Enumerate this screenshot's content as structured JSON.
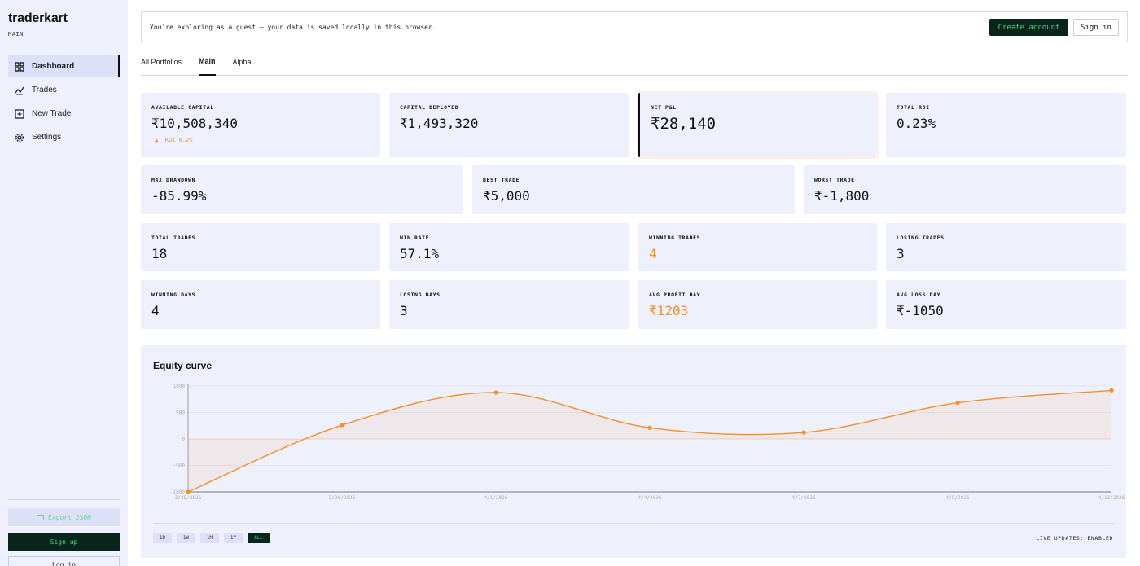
{
  "brand": {
    "name": "traderkart",
    "subtitle": "MAIN"
  },
  "sidebar": {
    "items": [
      {
        "label": "Dashboard",
        "icon": "grid-icon",
        "active": true
      },
      {
        "label": "Trades",
        "icon": "trend-icon",
        "active": false
      },
      {
        "label": "New Trade",
        "icon": "plus-square-icon",
        "active": false
      },
      {
        "label": "Settings",
        "icon": "gear-icon",
        "active": false
      }
    ],
    "export_label": "Export JSON",
    "signup_label": "Sign up",
    "login_label": "Log in"
  },
  "banner": {
    "text": "You're exploring as a guest — your data is saved locally in this browser.",
    "create_label": "Create account",
    "signin_label": "Sign in"
  },
  "tabs": [
    {
      "label": "All Portfolios",
      "active": false
    },
    {
      "label": "Main",
      "active": true
    },
    {
      "label": "Alpha",
      "active": false
    }
  ],
  "stats": {
    "available_capital": {
      "label": "AVAILABLE CAPITAL",
      "value": "₹10,508,340",
      "sub": "ROI 0.2%"
    },
    "capital_deployed": {
      "label": "CAPITAL DEPLOYED",
      "value": "₹1,493,320"
    },
    "net_pnl": {
      "label": "NET P&L",
      "value": "₹28,140"
    },
    "total_roi": {
      "label": "TOTAL ROI",
      "value": "0.23%"
    },
    "max_drawdown": {
      "label": "MAX DRAWDOWN",
      "value": "-85.99%"
    },
    "best_trade": {
      "label": "BEST TRADE",
      "value": "₹5,000"
    },
    "worst_trade": {
      "label": "WORST TRADE",
      "value": "₹-1,800"
    },
    "total_trades": {
      "label": "TOTAL TRADES",
      "value": "18"
    },
    "win_rate": {
      "label": "WIN RATE",
      "value": "57.1%"
    },
    "winning_trades": {
      "label": "WINNING TRADES",
      "value": "4"
    },
    "losing_trades": {
      "label": "LOSING TRADES",
      "value": "3"
    },
    "winning_days": {
      "label": "WINNING DAYS",
      "value": "4"
    },
    "losing_days": {
      "label": "LOSING DAYS",
      "value": "3"
    },
    "avg_profit_day": {
      "label": "AVG PROFIT DAY",
      "value": "₹1203"
    },
    "avg_loss_day": {
      "label": "AVG LOSS DAY",
      "value": "₹-1050"
    }
  },
  "colors": {
    "accent": "#f2902a",
    "dark": "#07251a",
    "green": "#3ddc84",
    "panel": "#eef0fb"
  },
  "equity": {
    "title": "Equity curve",
    "ranges": [
      "1D",
      "1W",
      "1M",
      "1Y",
      "ALL"
    ],
    "active_range": "ALL",
    "live_label": "LIVE UPDATES: ENABLED"
  },
  "chart_data": {
    "type": "line",
    "title": "Equity curve",
    "x": [
      "3/25/2026",
      "3/26/2026",
      "4/1/2026",
      "4/4/2026",
      "4/7/2026",
      "4/9/2026",
      "4/13/2026"
    ],
    "series": [
      {
        "values": [
          -1800,
          470,
          1580,
          380,
          220,
          1230,
          1650
        ]
      }
    ],
    "y_ticks": [
      1800,
      900,
      0,
      -900,
      -1800
    ],
    "ylim": [
      -1800,
      1800
    ],
    "grid": true,
    "fill": "area"
  }
}
